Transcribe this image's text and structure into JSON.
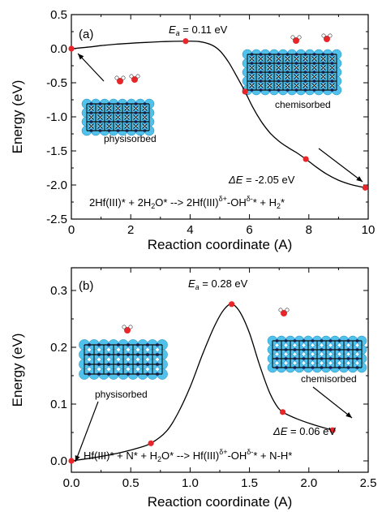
{
  "chart_data": [
    {
      "type": "line",
      "panel_label": "(a)",
      "xlabel": "Reaction coordinate (A)",
      "ylabel": "Energy (eV)",
      "xlim": [
        0,
        10
      ],
      "ylim": [
        -2.5,
        0.5
      ],
      "xticks": [
        0,
        2,
        4,
        6,
        8,
        10
      ],
      "xtick_labels": [
        "0",
        "2",
        "4",
        "6",
        "8",
        "10"
      ],
      "yticks": [
        0.5,
        0.0,
        -0.5,
        -1.0,
        -1.5,
        -2.0,
        -2.5
      ],
      "ytick_labels": [
        "0.5",
        "0.0",
        "-0.5",
        "-1.0",
        "-1.5",
        "-2.0",
        "-2.5"
      ],
      "points": [
        {
          "x": 0,
          "y": 0.0
        },
        {
          "x": 3.85,
          "y": 0.11
        },
        {
          "x": 5.85,
          "y": -0.63
        },
        {
          "x": 7.9,
          "y": -1.62
        },
        {
          "x": 9.9,
          "y": -2.04
        }
      ],
      "curve": [
        {
          "x": 0,
          "y": 0.0
        },
        {
          "x": 0.5,
          "y": 0.02
        },
        {
          "x": 1.0,
          "y": 0.045
        },
        {
          "x": 1.5,
          "y": 0.065
        },
        {
          "x": 2.0,
          "y": 0.08
        },
        {
          "x": 2.5,
          "y": 0.092
        },
        {
          "x": 3.0,
          "y": 0.102
        },
        {
          "x": 3.5,
          "y": 0.108
        },
        {
          "x": 3.85,
          "y": 0.11
        },
        {
          "x": 4.3,
          "y": 0.105
        },
        {
          "x": 4.7,
          "y": 0.06
        },
        {
          "x": 5.0,
          "y": -0.03
        },
        {
          "x": 5.3,
          "y": -0.2
        },
        {
          "x": 5.6,
          "y": -0.43
        },
        {
          "x": 5.85,
          "y": -0.63
        },
        {
          "x": 6.1,
          "y": -0.85
        },
        {
          "x": 6.4,
          "y": -1.07
        },
        {
          "x": 6.7,
          "y": -1.24
        },
        {
          "x": 7.0,
          "y": -1.36
        },
        {
          "x": 7.3,
          "y": -1.45
        },
        {
          "x": 7.6,
          "y": -1.53
        },
        {
          "x": 7.9,
          "y": -1.62
        },
        {
          "x": 8.2,
          "y": -1.72
        },
        {
          "x": 8.6,
          "y": -1.84
        },
        {
          "x": 9.0,
          "y": -1.93
        },
        {
          "x": 9.4,
          "y": -1.99
        },
        {
          "x": 9.9,
          "y": -2.04
        }
      ],
      "annotations": {
        "ea_prefix": "E",
        "ea_sub": "a",
        "ea_value": " = 0.11 eV",
        "de_label": "ΔE",
        "de_value": " = -2.05 eV",
        "phys": "physisorbed",
        "chem": "chemisorbed",
        "eq_part1": "2Hf(III)* +  2H",
        "eq_sub1": "2",
        "eq_part2": "O* --> 2Hf(III)",
        "eq_sup1": "δ+",
        "eq_part3": "-OH",
        "eq_sup2": "δ-",
        "eq_part4": "* + H",
        "eq_sub2": "2",
        "eq_part5": "*"
      }
    },
    {
      "type": "line",
      "panel_label": "(b)",
      "xlabel": "Reaction coordinate (A)",
      "ylabel": "Energy (eV)",
      "xlim": [
        0.0,
        2.5
      ],
      "ylim": [
        -0.02,
        0.34
      ],
      "xticks": [
        0.0,
        0.5,
        1.0,
        1.5,
        2.0,
        2.5
      ],
      "xtick_labels": [
        "0.0",
        "0.5",
        "1.0",
        "1.5",
        "2.0",
        "2.5"
      ],
      "yticks": [
        0.0,
        0.1,
        0.2,
        0.3
      ],
      "ytick_labels": [
        "0.0",
        "0.1",
        "0.2",
        "0.3"
      ],
      "points": [
        {
          "x": 0.0,
          "y": 0.0
        },
        {
          "x": 0.67,
          "y": 0.031
        },
        {
          "x": 1.35,
          "y": 0.276
        },
        {
          "x": 1.78,
          "y": 0.086
        },
        {
          "x": 2.2,
          "y": 0.054
        }
      ],
      "curve": [
        {
          "x": 0.0,
          "y": 0.0
        },
        {
          "x": 0.2,
          "y": 0.006
        },
        {
          "x": 0.4,
          "y": 0.014
        },
        {
          "x": 0.55,
          "y": 0.022
        },
        {
          "x": 0.67,
          "y": 0.031
        },
        {
          "x": 0.8,
          "y": 0.052
        },
        {
          "x": 0.9,
          "y": 0.085
        },
        {
          "x": 1.0,
          "y": 0.13
        },
        {
          "x": 1.1,
          "y": 0.185
        },
        {
          "x": 1.2,
          "y": 0.235
        },
        {
          "x": 1.28,
          "y": 0.265
        },
        {
          "x": 1.35,
          "y": 0.276
        },
        {
          "x": 1.42,
          "y": 0.262
        },
        {
          "x": 1.5,
          "y": 0.225
        },
        {
          "x": 1.58,
          "y": 0.172
        },
        {
          "x": 1.66,
          "y": 0.125
        },
        {
          "x": 1.72,
          "y": 0.1
        },
        {
          "x": 1.78,
          "y": 0.086
        },
        {
          "x": 1.9,
          "y": 0.074
        },
        {
          "x": 2.05,
          "y": 0.063
        },
        {
          "x": 2.2,
          "y": 0.054
        }
      ],
      "annotations": {
        "ea_prefix": "E",
        "ea_sub": "a",
        "ea_value": " = 0.28 eV",
        "de_label": "ΔE",
        "de_value": " = 0.06 eV",
        "phys": "physisorbed",
        "chem": "chemisorbed",
        "eq_part1": "Hf(III)* + N* + H",
        "eq_sub1": "2",
        "eq_part2": "O* --> Hf(III)",
        "eq_sup1": "δ+",
        "eq_part3": "-OH",
        "eq_sup2": "δ-",
        "eq_part4": "* + N-H*"
      }
    }
  ],
  "colors": {
    "marker": "#e8262a",
    "line": "#000000",
    "atom_light": "#4fc1ea",
    "atom_dark": "#2b3e8f",
    "oxygen": "#e8262a"
  }
}
